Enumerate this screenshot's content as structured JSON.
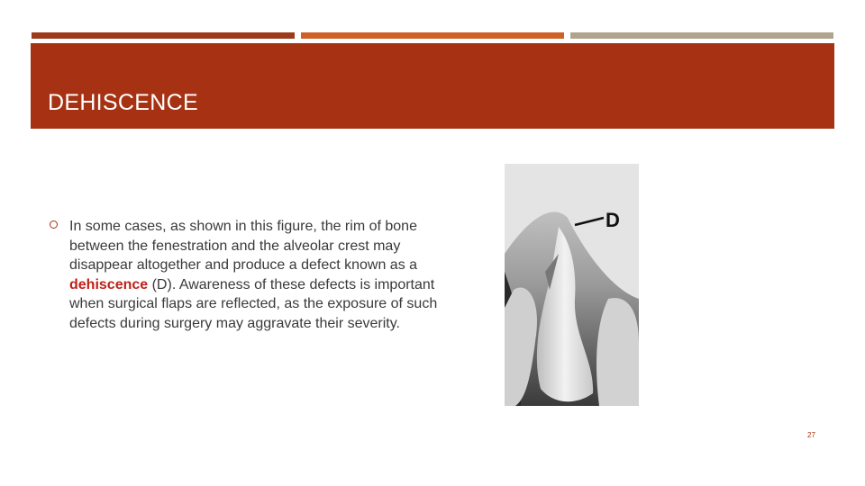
{
  "slide": {
    "title": "DEHISCENCE",
    "bullet": {
      "before": "In some cases, as shown in this figure,  the rim of bone between the fenestration and the alveolar crest may disappear altogether and produce a defect known as a ",
      "highlight": "dehiscence",
      "after": " (D).  Awareness of these defects is important when surgical flaps are reflected, as the exposure of such defects during surgery may aggravate their severity."
    },
    "figure_label": "D",
    "page_number": "27"
  }
}
